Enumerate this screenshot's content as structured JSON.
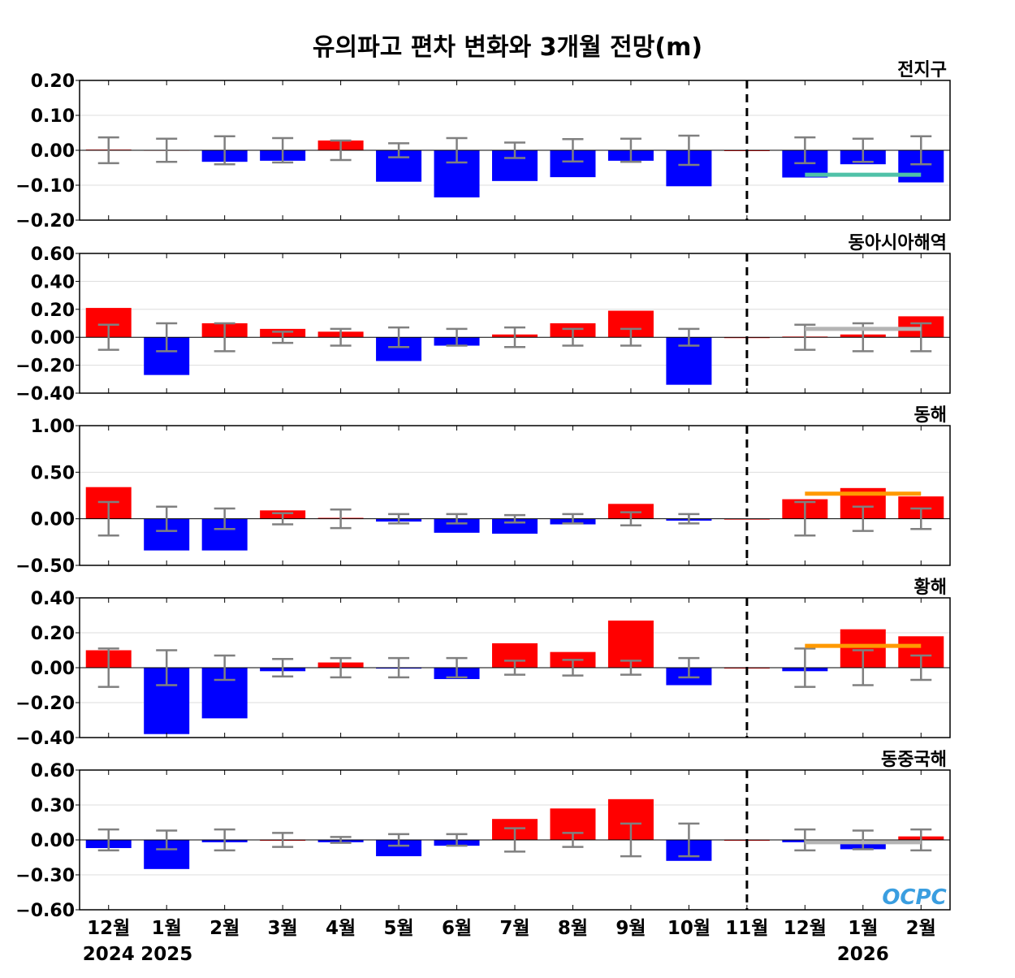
{
  "chart_data": {
    "type": "bar",
    "title": "유의파고 편차 변화와 3개월 전망(m)",
    "categories": [
      "12월",
      "1월",
      "2월",
      "3월",
      "4월",
      "5월",
      "6월",
      "7월",
      "8월",
      "9월",
      "10월",
      "11월",
      "12월",
      "1월",
      "2월"
    ],
    "year_labels": [
      {
        "index": 0,
        "text": "2024"
      },
      {
        "index": 1,
        "text": "2025"
      },
      {
        "index": 13,
        "text": "2026"
      }
    ],
    "forecast_divider_after_category": "11월",
    "colors": {
      "positive": "#ff0000",
      "negative": "#0000ff",
      "error_bar": "#808080"
    },
    "logo_text": "OCPC",
    "panels": [
      {
        "name": "전지구",
        "ylim": [
          -0.2,
          0.2
        ],
        "yticks": [
          0.2,
          0.1,
          0.0,
          -0.1,
          -0.2
        ],
        "tick_labels": [
          "0.20",
          "0.10",
          "0.00",
          "−0.10",
          "−0.20"
        ],
        "values": [
          0.002,
          0.001,
          -0.033,
          -0.03,
          0.028,
          -0.09,
          -0.135,
          -0.088,
          -0.077,
          -0.03,
          -0.103,
          0,
          -0.078,
          -0.04,
          -0.092
        ],
        "errors": [
          0.037,
          0.033,
          0.04,
          0.035,
          0.028,
          0.02,
          0.035,
          0.022,
          0.032,
          0.033,
          0.042,
          null,
          0.037,
          0.033,
          0.04
        ],
        "forecast_mean": -0.07,
        "forecast_color": "#4fc1a8"
      },
      {
        "name": "동아시아해역",
        "ylim": [
          -0.4,
          0.6
        ],
        "yticks": [
          0.6,
          0.4,
          0.2,
          0.0,
          -0.2,
          -0.4
        ],
        "tick_labels": [
          "0.60",
          "0.40",
          "0.20",
          "0.00",
          "−0.20",
          "−0.40"
        ],
        "values": [
          0.21,
          -0.27,
          0.1,
          0.06,
          0.04,
          -0.17,
          -0.06,
          0.02,
          0.1,
          0.19,
          -0.34,
          0,
          0.005,
          0.02,
          0.15
        ],
        "errors": [
          0.09,
          0.1,
          0.1,
          0.04,
          0.06,
          0.07,
          0.06,
          0.07,
          0.06,
          0.06,
          0.06,
          null,
          0.09,
          0.1,
          0.1
        ],
        "forecast_mean": 0.06,
        "forecast_color": "#b4b4b4"
      },
      {
        "name": "동해",
        "ylim": [
          -0.5,
          1.0
        ],
        "yticks": [
          1.0,
          0.5,
          0.0,
          -0.5
        ],
        "tick_labels": [
          "1.00",
          "0.50",
          "0.00",
          "−0.50"
        ],
        "values": [
          0.34,
          -0.34,
          -0.34,
          0.09,
          0.01,
          -0.03,
          -0.15,
          -0.16,
          -0.06,
          0.16,
          -0.02,
          0,
          0.21,
          0.33,
          0.24
        ],
        "errors": [
          0.18,
          0.13,
          0.11,
          0.06,
          0.1,
          0.05,
          0.05,
          0.04,
          0.05,
          0.07,
          0.05,
          null,
          0.18,
          0.13,
          0.11
        ],
        "forecast_mean": 0.27,
        "forecast_color": "#ff9900"
      },
      {
        "name": "황해",
        "ylim": [
          -0.4,
          0.4
        ],
        "yticks": [
          0.4,
          0.2,
          0.0,
          -0.2,
          -0.4
        ],
        "tick_labels": [
          "0.40",
          "0.20",
          "0.00",
          "−0.20",
          "−0.40"
        ],
        "values": [
          0.1,
          -0.38,
          -0.29,
          -0.02,
          0.03,
          -0.005,
          -0.065,
          0.14,
          0.09,
          0.27,
          -0.1,
          0,
          -0.02,
          0.22,
          0.18
        ],
        "errors": [
          0.11,
          0.1,
          0.07,
          0.05,
          0.055,
          0.055,
          0.055,
          0.04,
          0.045,
          0.04,
          0.055,
          null,
          0.11,
          0.1,
          0.07
        ],
        "forecast_mean": 0.125,
        "forecast_color": "#ff9900"
      },
      {
        "name": "동중국해",
        "ylim": [
          -0.6,
          0.6
        ],
        "yticks": [
          0.6,
          0.3,
          0.0,
          -0.3,
          -0.6
        ],
        "tick_labels": [
          "0.60",
          "0.30",
          "0.00",
          "−0.30",
          "−0.60"
        ],
        "values": [
          -0.07,
          -0.25,
          -0.02,
          0.0,
          -0.02,
          -0.14,
          -0.05,
          0.18,
          0.27,
          0.35,
          -0.18,
          0,
          -0.02,
          -0.08,
          0.03
        ],
        "errors": [
          0.09,
          0.08,
          0.09,
          0.06,
          0.025,
          0.05,
          0.05,
          0.1,
          0.06,
          0.14,
          0.14,
          null,
          0.09,
          0.08,
          0.09
        ],
        "forecast_mean": -0.02,
        "forecast_color": "#b4b4b4"
      }
    ]
  }
}
